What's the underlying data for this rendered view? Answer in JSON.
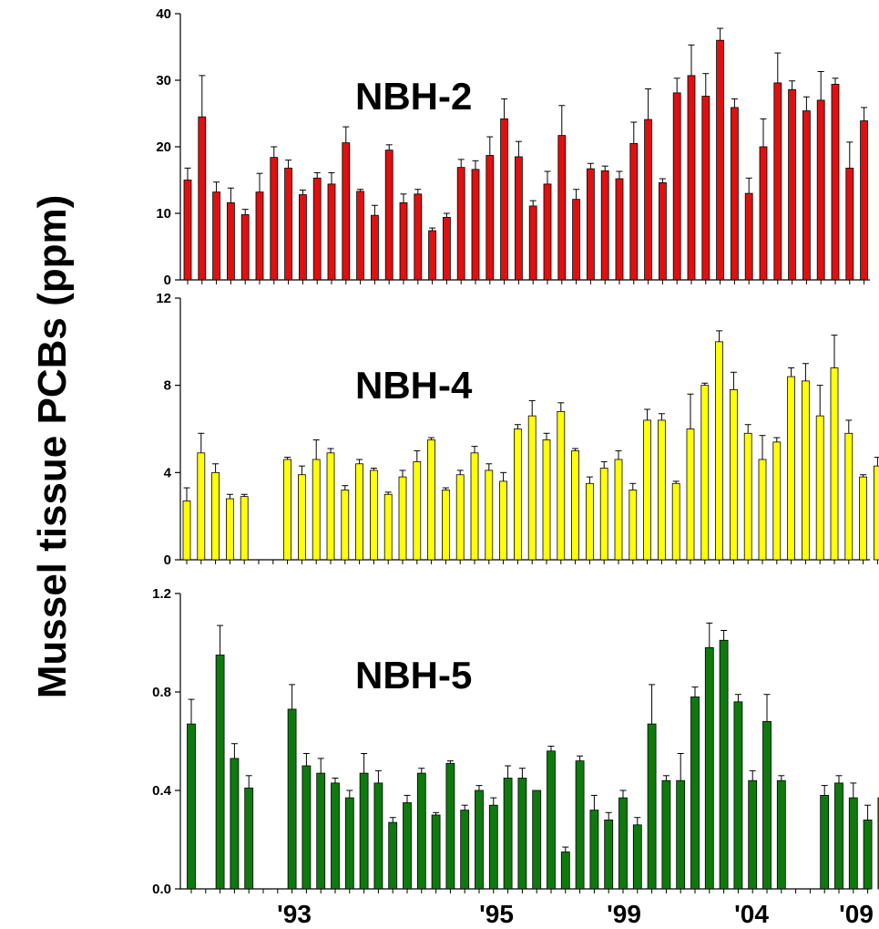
{
  "ylabel": "Mussel tissue PCBs (ppm)",
  "x_tick_labels": [
    "'93",
    "'95",
    "'99",
    "'04",
    "'09"
  ],
  "chart_data": [
    {
      "type": "bar",
      "title": "NBH-2",
      "ylabel": "Mussel tissue PCBs (ppm)",
      "ylim": [
        0,
        40
      ],
      "yticks": [
        "0",
        "10",
        "20",
        "30",
        "40"
      ],
      "grid": false,
      "color": "#e01010",
      "series": [
        {
          "values": [
            15.0,
            24.5,
            13.2,
            11.6,
            9.8,
            13.2,
            18.4,
            16.8,
            12.8,
            15.3,
            14.4,
            20.6,
            13.3,
            9.7,
            19.5,
            11.6,
            12.9,
            7.4,
            9.4,
            16.9,
            16.6,
            18.7,
            24.2,
            18.5,
            11.1,
            14.4,
            21.7,
            12.1,
            16.7,
            16.4,
            15.2,
            20.5,
            24.1,
            14.6,
            28.1,
            30.7,
            27.6,
            36.0,
            25.9,
            13.0,
            20.0,
            29.6,
            28.6,
            25.4,
            27.0,
            29.4,
            16.8,
            23.9
          ],
          "errors": [
            1.8,
            6.2,
            1.5,
            2.2,
            0.8,
            2.8,
            1.6,
            1.2,
            0.7,
            0.8,
            1.7,
            2.4,
            0.3,
            1.5,
            0.8,
            1.3,
            0.7,
            0.4,
            0.6,
            1.2,
            1.3,
            2.8,
            3.0,
            2.3,
            0.8,
            1.9,
            4.5,
            1.5,
            0.8,
            0.7,
            1.1,
            3.2,
            4.6,
            0.6,
            2.2,
            4.6,
            3.4,
            1.8,
            1.3,
            2.3,
            4.2,
            4.5,
            1.3,
            2.1,
            4.3,
            0.9,
            3.9,
            2.0
          ]
        }
      ]
    },
    {
      "type": "bar",
      "title": "NBH-4",
      "ylabel": "Mussel tissue PCBs (ppm)",
      "ylim": [
        0,
        12
      ],
      "yticks": [
        "0",
        "4",
        "8",
        "12"
      ],
      "grid": false,
      "color": "#ffff00",
      "series": [
        {
          "values": [
            2.7,
            4.9,
            4.0,
            2.8,
            2.9,
            null,
            null,
            4.6,
            3.9,
            4.6,
            4.9,
            3.2,
            4.4,
            4.1,
            3.0,
            3.8,
            4.5,
            5.5,
            3.2,
            3.9,
            4.9,
            4.1,
            3.6,
            6.0,
            6.6,
            5.5,
            6.8,
            5.0,
            3.5,
            4.2,
            4.6,
            3.2,
            6.4,
            6.4,
            3.5,
            6.0,
            8.0,
            10.0,
            7.8,
            5.8,
            4.6,
            5.4,
            8.4,
            8.2,
            6.6,
            8.8,
            5.8,
            3.8,
            4.3
          ],
          "errors": [
            0.6,
            0.9,
            0.4,
            0.2,
            0.1,
            null,
            null,
            0.1,
            0.4,
            0.9,
            0.2,
            0.2,
            0.2,
            0.1,
            0.1,
            0.3,
            0.5,
            0.1,
            0.1,
            0.2,
            0.3,
            0.3,
            0.4,
            0.2,
            0.7,
            0.3,
            0.4,
            0.1,
            0.3,
            0.3,
            0.4,
            0.3,
            0.5,
            0.3,
            0.1,
            1.6,
            0.1,
            0.5,
            0.8,
            0.4,
            1.1,
            0.2,
            0.4,
            0.8,
            1.4,
            1.5,
            0.6,
            0.1,
            0.4
          ]
        }
      ]
    },
    {
      "type": "bar",
      "title": "NBH-5",
      "ylabel": "Mussel tissue PCBs (ppm)",
      "ylim": [
        0.0,
        1.2
      ],
      "yticks": [
        "0.0",
        "0.4",
        "0.8",
        "1.2"
      ],
      "grid": false,
      "color": "#0e7a0e",
      "series": [
        {
          "values": [
            0.67,
            null,
            0.95,
            0.53,
            0.41,
            null,
            null,
            0.73,
            0.5,
            0.47,
            0.43,
            0.37,
            0.47,
            0.43,
            0.27,
            0.35,
            0.47,
            0.3,
            0.51,
            0.32,
            0.4,
            0.34,
            0.45,
            0.45,
            0.4,
            0.56,
            0.15,
            0.52,
            0.32,
            0.28,
            0.37,
            0.26,
            0.67,
            0.44,
            0.44,
            0.78,
            0.98,
            1.01,
            0.76,
            0.44,
            0.68,
            0.44,
            null,
            null,
            0.38,
            0.43,
            0.37,
            0.28,
            0.37
          ],
          "errors": [
            0.1,
            null,
            0.12,
            0.06,
            0.05,
            null,
            null,
            0.1,
            0.05,
            0.06,
            0.02,
            0.03,
            0.08,
            0.05,
            0.02,
            0.03,
            0.02,
            0.01,
            0.01,
            0.02,
            0.02,
            0.03,
            0.05,
            0.04,
            0.0,
            0.02,
            0.02,
            0.02,
            0.06,
            0.03,
            0.03,
            0.03,
            0.16,
            0.02,
            0.11,
            0.04,
            0.1,
            0.04,
            0.03,
            0.04,
            0.11,
            0.02,
            null,
            null,
            0.04,
            0.03,
            0.06,
            0.06,
            0.02
          ]
        }
      ]
    }
  ]
}
